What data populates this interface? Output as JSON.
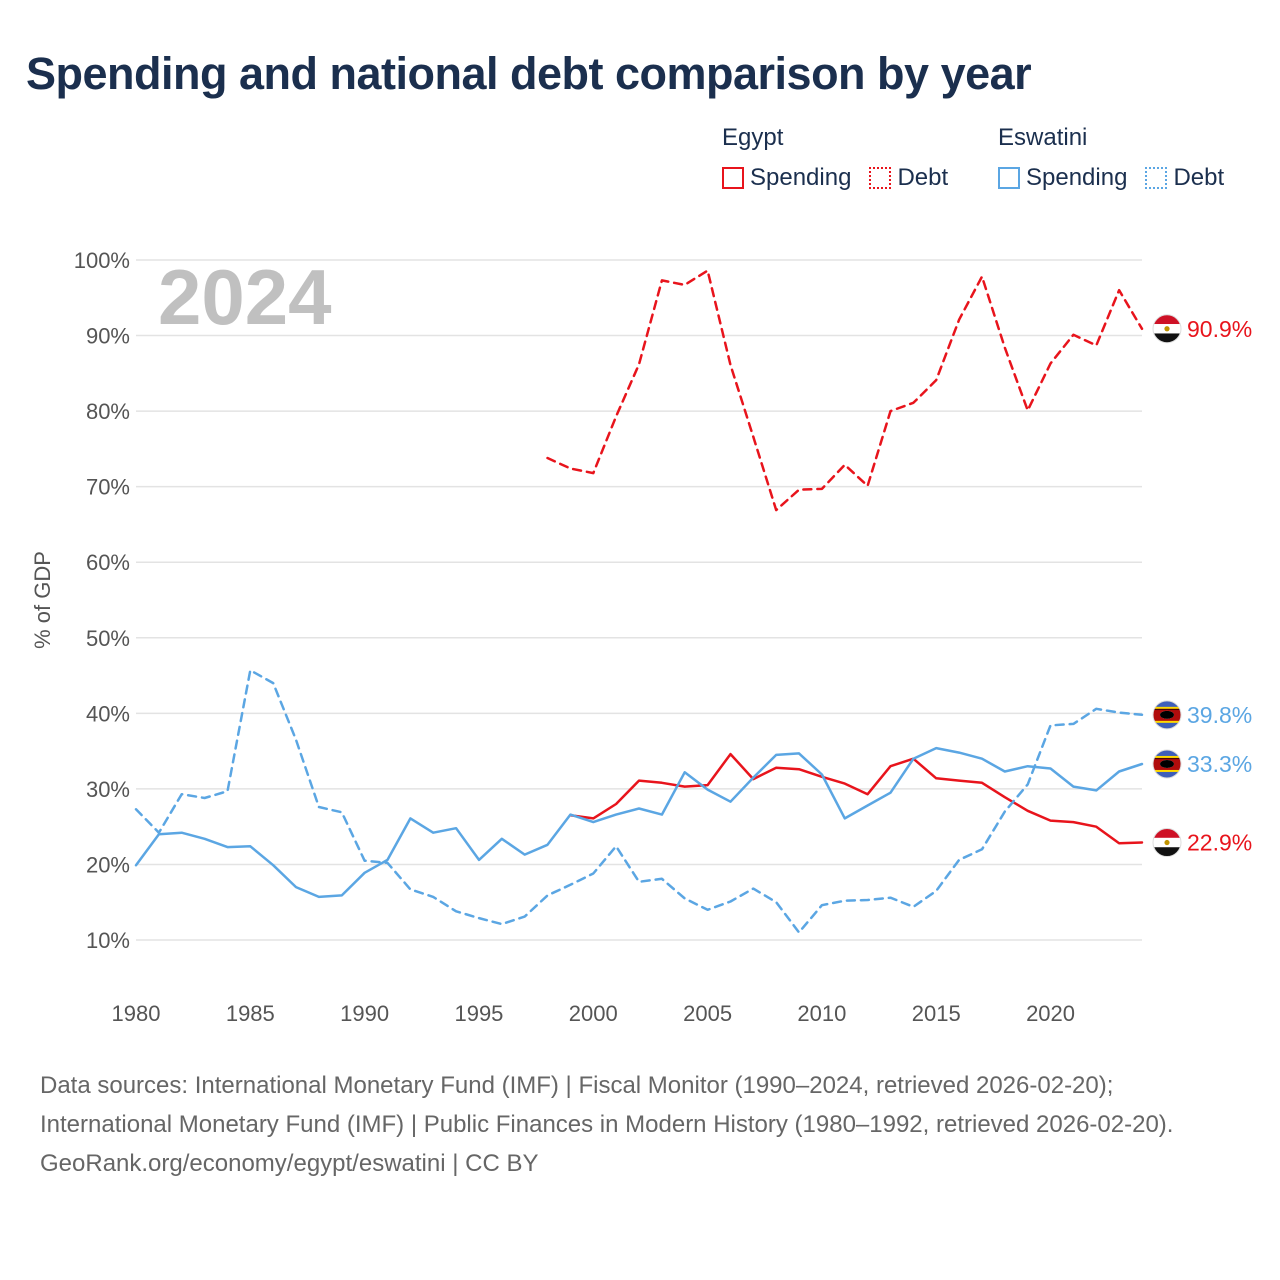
{
  "title": "Spending and national debt comparison by year",
  "legend": {
    "groups": [
      {
        "country": "Egypt",
        "items": [
          {
            "label": "Spending",
            "style": "solid",
            "color": "#e8141c"
          },
          {
            "label": "Debt",
            "style": "dotted",
            "color": "#e8141c"
          }
        ]
      },
      {
        "country": "Eswatini",
        "items": [
          {
            "label": "Spending",
            "style": "solid",
            "color": "#5ba6e3"
          },
          {
            "label": "Debt",
            "style": "dotted",
            "color": "#5ba6e3"
          }
        ]
      }
    ]
  },
  "chart_data": {
    "type": "line",
    "year_label": "2024",
    "ylabel": "% of GDP",
    "xlim": [
      1980,
      2024
    ],
    "ylim": [
      5,
      100
    ],
    "x_ticks": [
      1980,
      1985,
      1990,
      1995,
      2000,
      2005,
      2010,
      2015,
      2020
    ],
    "y_ticks": [
      10,
      20,
      30,
      40,
      50,
      60,
      70,
      80,
      90,
      100
    ],
    "y_tick_labels": [
      "10%",
      "20%",
      "30%",
      "40%",
      "50%",
      "60%",
      "70%",
      "80%",
      "90%",
      "100%"
    ],
    "series": [
      {
        "name": "Egypt Debt",
        "country": "Egypt",
        "metric": "Debt",
        "color": "#e8141c",
        "dash": "dashed",
        "start": 1998,
        "values": [
          73.8,
          72.4,
          71.8,
          79.3,
          86.2,
          97.3,
          96.7,
          98.6,
          86.1,
          76.6,
          66.9,
          69.6,
          69.7,
          72.9,
          70.1,
          80.0,
          81.1,
          84.1,
          92.1,
          97.8,
          88.4,
          80.1,
          86.3,
          90.1,
          88.7,
          96.0,
          90.9
        ],
        "end_label": "90.9%"
      },
      {
        "name": "Egypt Spending",
        "country": "Egypt",
        "metric": "Spending",
        "color": "#e8141c",
        "dash": "solid",
        "start": 1999,
        "values": [
          26.5,
          26.1,
          28.0,
          31.1,
          30.8,
          30.3,
          30.5,
          34.6,
          31.3,
          32.8,
          32.6,
          31.6,
          30.7,
          29.3,
          33.0,
          34.0,
          31.4,
          31.1,
          30.8,
          28.9,
          27.1,
          25.8,
          25.6,
          25.0,
          22.8,
          22.9
        ],
        "end_label": "22.9%"
      },
      {
        "name": "Eswatini Debt",
        "country": "Eswatini",
        "metric": "Debt",
        "color": "#5ba6e3",
        "dash": "dashed",
        "start": 1980,
        "values": [
          27.3,
          24.2,
          29.3,
          28.8,
          29.7,
          45.7,
          44.0,
          36.5,
          27.6,
          26.9,
          20.5,
          20.2,
          16.7,
          15.7,
          13.8,
          12.9,
          12.1,
          13.1,
          15.9,
          17.3,
          18.8,
          22.4,
          17.7,
          18.1,
          15.5,
          14.0,
          15.1,
          16.8,
          15.0,
          11.0,
          14.6,
          15.2,
          15.3,
          15.6,
          14.4,
          16.5,
          20.6,
          22.0,
          27.0,
          30.6,
          38.4,
          38.6,
          40.6,
          40.1,
          39.8
        ],
        "end_label": "39.8%"
      },
      {
        "name": "Eswatini Spending",
        "country": "Eswatini",
        "metric": "Spending",
        "color": "#5ba6e3",
        "dash": "solid",
        "start": 1980,
        "values": [
          19.9,
          24.0,
          24.2,
          23.4,
          22.3,
          22.4,
          19.9,
          17.0,
          15.7,
          15.9,
          18.9,
          20.6,
          26.1,
          24.2,
          24.8,
          20.6,
          23.4,
          21.3,
          22.6,
          26.6,
          25.6,
          26.6,
          27.4,
          26.6,
          32.2,
          29.9,
          28.3,
          31.5,
          34.5,
          34.7,
          31.9,
          26.1,
          27.8,
          29.5,
          34.0,
          35.4,
          34.8,
          34.0,
          32.3,
          33.0,
          32.7,
          30.3,
          29.8,
          32.3,
          33.3
        ],
        "end_label": "33.3%"
      }
    ]
  },
  "footer": {
    "sources": "Data sources: International Monetary Fund (IMF) | Fiscal Monitor (1990–2024, retrieved 2026-02-20); International Monetary Fund (IMF) | Public Finances in Modern History (1980–1992, retrieved 2026-02-20).",
    "credit": "GeoRank.org/economy/egypt/eswatini | CC BY"
  }
}
